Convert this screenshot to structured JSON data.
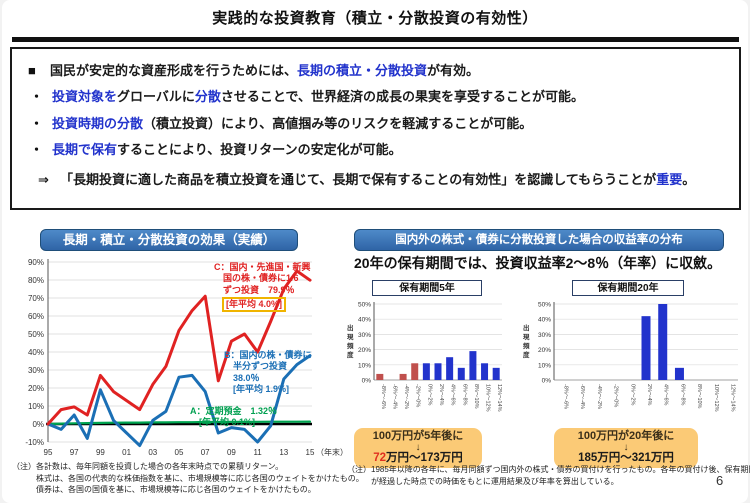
{
  "page": {
    "title": "実践的な投資教育（積立・分散投資の有効性）",
    "page_number": "6"
  },
  "bullets": {
    "main": [
      {
        "t": "国民が安定的な資産形成を行うためには、",
        "c": "k"
      },
      {
        "t": "長期の積立・分散投資",
        "c": "b"
      },
      {
        "t": "が有効。",
        "c": "k"
      }
    ],
    "d1": [
      {
        "t": "投資対象を",
        "c": "b"
      },
      {
        "t": "グローバルに",
        "c": "k"
      },
      {
        "t": "分散",
        "c": "b"
      },
      {
        "t": "させることで、世界経済の成長の果実を享受することが可能。",
        "c": "k"
      }
    ],
    "d2": [
      {
        "t": "投資時期の分散",
        "c": "b"
      },
      {
        "t": "（積立投資）により、高値掴み等のリスクを軽減することが可能。",
        "c": "k"
      }
    ],
    "d3": [
      {
        "t": "長期で保有",
        "c": "b"
      },
      {
        "t": "することにより、投資リターンの安定化が可能。",
        "c": "k"
      }
    ],
    "concl": [
      {
        "t": "「長期投資に適した商品を積立投資を通じて、長期で保有することの有効性」を認識してもらうことが",
        "c": "k"
      },
      {
        "t": "重要",
        "c": "b"
      },
      {
        "t": "。",
        "c": "k"
      }
    ],
    "square_marker": "■",
    "dot_marker": "・",
    "arrow_marker": "⇒"
  },
  "left_section": {
    "header": "長期・積立・分散投資の効果（実績）",
    "annotations": {
      "c_lines": [
        "C：国内・先進国・新興",
        "　国の株・債券に1/6",
        "　ずつ投資　79.9％"
      ],
      "c_box": "[年平均 4.0%]",
      "b_lines": [
        "B：国内の株・債券に",
        "　半分ずつ投資",
        "　38.0％",
        "　[年平均 1.9%]"
      ],
      "a_lines": [
        "A：定期預金　1.32％",
        "　[年平均 0.1%]"
      ]
    },
    "footnote_lines": [
      "（注）各計数は、毎年同額を投資した場合の各年末時点での累積リターン。",
      "　　　株式は、各国の代表的な株価指数を基に、市場規模等に応じ各国のウェイトをかけたもの。",
      "　　　債券は、各国の国債を基に、市場規模等に応じ各国のウェイトをかけたもの。"
    ]
  },
  "right_section": {
    "header": "国内外の株式・債券に分散投資した場合の収益率の分布",
    "lead": "20年の保有期間では、投資収益率2～8％（年率）に収斂。",
    "box5": {
      "label": "保有期間5年",
      "line1": "100万円が5年後に",
      "arrow": "↓",
      "result": [
        {
          "t": "72",
          "c": "r"
        },
        {
          "t": "万円～173万円",
          "c": "k"
        }
      ]
    },
    "box20": {
      "label": "保有期間20年",
      "line1": "100万円が20年後に",
      "arrow": "↓",
      "result": [
        {
          "t": "185万円～321万円",
          "c": "k"
        }
      ]
    },
    "footnote_lines": [
      "（注）1985年以降の各年に、毎月同額ずつ国内外の株式・債券の買付けを行ったもの。各年の買付け後、保有期間",
      "　　　が経過した時点での時価をもとに運用結果及び年率を算出している。"
    ]
  },
  "colors": {
    "accent_blue_text": "#2233cc",
    "header_pill": "#3a74b8",
    "line_red": "#e02222",
    "line_blue": "#1b6fb5",
    "line_green": "#00a551",
    "bar_red": "#c0504d",
    "bar_blue": "#2233cc",
    "orange_box": "#fbca76"
  },
  "chart_data": [
    {
      "id": "line",
      "type": "line",
      "title": "長期・積立・分散投資の効果（実績）",
      "x_years": [
        "95",
        "96",
        "97",
        "98",
        "99",
        "00",
        "01",
        "02",
        "03",
        "04",
        "05",
        "06",
        "07",
        "08",
        "09",
        "10",
        "11",
        "12",
        "13",
        "14",
        "15"
      ],
      "xticks": [
        "95",
        "97",
        "99",
        "01",
        "03",
        "05",
        "07",
        "09",
        "11",
        "13",
        "15"
      ],
      "xlabel": "（年末）",
      "ylim": [
        -10,
        90
      ],
      "ytick_step": 10,
      "grid": true,
      "series": [
        {
          "name": "C：国内・先進国・新興国の株・債券に1/6ずつ投資（累積79.9％、年平均4.0%）",
          "color": "#e02222",
          "width": 3,
          "values": [
            0,
            8,
            9.5,
            5,
            27,
            18,
            13,
            8,
            22,
            32,
            52,
            63,
            71,
            24,
            46,
            50,
            40,
            57,
            75,
            85,
            79.9
          ]
        },
        {
          "name": "B：国内の株・債券に半分ずつ投資（累積38.0％、年平均1.9%）",
          "color": "#1b6fb5",
          "width": 3,
          "values": [
            0,
            -3,
            5,
            -8,
            19,
            2,
            -5,
            -12,
            2,
            7,
            26,
            27,
            18,
            -5,
            -2,
            -3,
            -10,
            -1,
            25,
            33,
            38
          ]
        },
        {
          "name": "A：定期預金（累積1.32％、年平均0.1%）",
          "color": "#00a551",
          "width": 2.2,
          "values": [
            0,
            0.2,
            0.4,
            0.5,
            0.6,
            0.7,
            0.8,
            0.8,
            0.9,
            0.9,
            1,
            1,
            1.1,
            1.1,
            1.2,
            1.2,
            1.2,
            1.3,
            1.3,
            1.3,
            1.32
          ]
        }
      ]
    },
    {
      "id": "hist5",
      "type": "bar",
      "title": "保有期間5年",
      "ylabel": "出現頻度",
      "ylim": [
        0,
        50
      ],
      "yticks": [
        0,
        10,
        20,
        30,
        40,
        50
      ],
      "grid": true,
      "categories": [
        "-8%～-6%",
        "-6%～-4%",
        "-4%～-2%",
        "-2%～0%",
        "0%～2%",
        "2%～4%",
        "4%～6%",
        "6%～8%",
        "8%～10%",
        "10%～12%",
        "12%～14%"
      ],
      "values": [
        4,
        0,
        4,
        11,
        11,
        11,
        15,
        8,
        19,
        11,
        8
      ],
      "bar_colors": [
        "#c0504d",
        "#c0504d",
        "#c0504d",
        "#c0504d",
        "#2233cc",
        "#2233cc",
        "#2233cc",
        "#2233cc",
        "#2233cc",
        "#2233cc",
        "#2233cc"
      ]
    },
    {
      "id": "hist20",
      "type": "bar",
      "title": "保有期間20年",
      "ylabel": "出現頻度",
      "ylim": [
        0,
        50
      ],
      "yticks": [
        0,
        10,
        20,
        30,
        40,
        50
      ],
      "grid": true,
      "categories": [
        "-8%～-6%",
        "-6%～-4%",
        "-4%～-2%",
        "-2%～0%",
        "0%～2%",
        "2%～4%",
        "4%～6%",
        "6%～8%",
        "8%～10%",
        "10%～12%",
        "12%～14%"
      ],
      "values": [
        0,
        0,
        0,
        0,
        0,
        42,
        50,
        8,
        0,
        0,
        0
      ],
      "bar_colors": [
        "#2233cc",
        "#2233cc",
        "#2233cc",
        "#2233cc",
        "#2233cc",
        "#2233cc",
        "#2233cc",
        "#2233cc",
        "#2233cc",
        "#2233cc",
        "#2233cc"
      ]
    }
  ]
}
